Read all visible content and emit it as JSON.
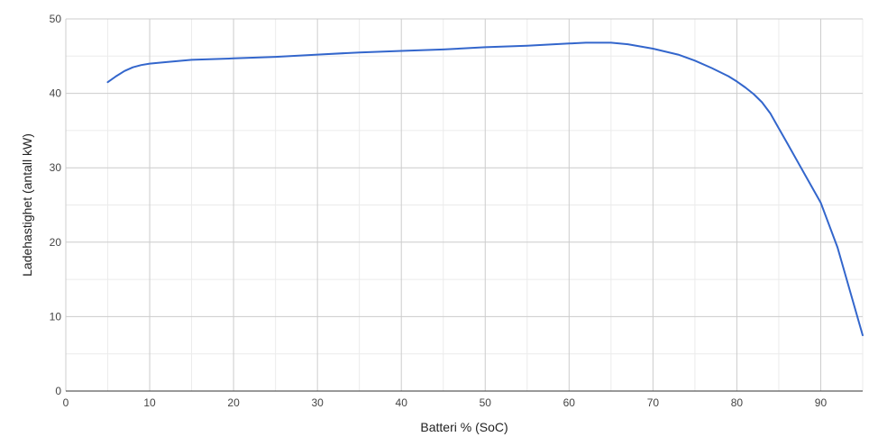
{
  "chart_data": {
    "type": "line",
    "xlabel": "Batteri % (SoC)",
    "ylabel": "Ladehastighet (antall kW)",
    "xlim": [
      0,
      95
    ],
    "ylim": [
      0,
      50
    ],
    "x_ticks": [
      0,
      10,
      20,
      30,
      40,
      50,
      60,
      70,
      80,
      90
    ],
    "y_ticks": [
      0,
      10,
      20,
      30,
      40,
      50
    ],
    "minor_x_step": 5,
    "minor_y_step": 5,
    "grid": true,
    "legend": "none",
    "series": [
      {
        "color": "#3366cc",
        "x": [
          5,
          6,
          7,
          8,
          9,
          10,
          12,
          15,
          20,
          25,
          30,
          35,
          40,
          45,
          50,
          55,
          60,
          62,
          65,
          67,
          70,
          73,
          75,
          77,
          79,
          80,
          81,
          82,
          83,
          84,
          85,
          86,
          88,
          90,
          92,
          95
        ],
        "y": [
          41.5,
          42.3,
          43.0,
          43.5,
          43.8,
          44.0,
          44.2,
          44.5,
          44.7,
          44.9,
          45.2,
          45.5,
          45.7,
          45.9,
          46.2,
          46.4,
          46.7,
          46.8,
          46.8,
          46.6,
          46.0,
          45.2,
          44.4,
          43.4,
          42.3,
          41.6,
          40.8,
          39.9,
          38.8,
          37.3,
          35.3,
          33.3,
          29.3,
          25.3,
          19.3,
          7.5
        ]
      }
    ]
  }
}
